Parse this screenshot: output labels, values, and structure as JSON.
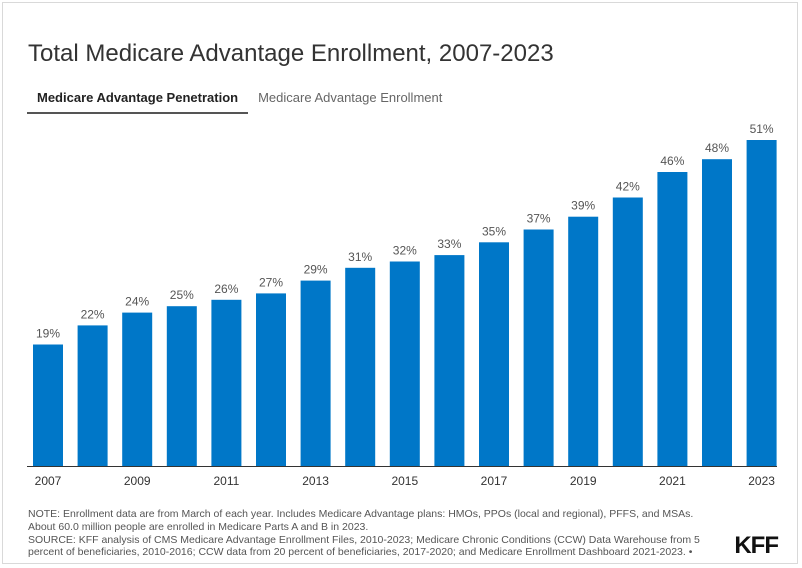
{
  "title": "Total Medicare Advantage Enrollment, 2007-2023",
  "tabs": [
    {
      "label": "Medicare Advantage Penetration",
      "active": true
    },
    {
      "label": "Medicare Advantage Enrollment",
      "active": false
    }
  ],
  "colors": {
    "bar": "#0077c8",
    "label": "#555555",
    "axis": "#333333"
  },
  "chart_data": {
    "type": "bar",
    "title": "Total Medicare Advantage Enrollment, 2007-2023",
    "xlabel": "",
    "ylabel": "",
    "ylim": [
      0,
      55
    ],
    "grid": false,
    "categories": [
      "2007",
      "2008",
      "2009",
      "2010",
      "2011",
      "2012",
      "2013",
      "2014",
      "2015",
      "2016",
      "2017",
      "2018",
      "2019",
      "2020",
      "2021",
      "2022",
      "2023"
    ],
    "tick_labels": [
      "2007",
      "",
      "2009",
      "",
      "2011",
      "",
      "2013",
      "",
      "2015",
      "",
      "2017",
      "",
      "2019",
      "",
      "2021",
      "",
      "2023"
    ],
    "values": [
      19,
      22,
      24,
      25,
      26,
      27,
      29,
      31,
      32,
      33,
      35,
      37,
      39,
      42,
      46,
      48,
      51
    ],
    "data_labels": [
      "19%",
      "22%",
      "24%",
      "25%",
      "26%",
      "27%",
      "29%",
      "31%",
      "32%",
      "33%",
      "35%",
      "37%",
      "39%",
      "42%",
      "46%",
      "48%",
      "51%"
    ]
  },
  "notes": {
    "line1": "NOTE: Enrollment data are from March of each year. Includes Medicare Advantage plans: HMOs, PPOs (local and regional), PFFS, and MSAs.",
    "line2": "About 60.0 million people are enrolled in Medicare Parts A and B in 2023.",
    "line3": "SOURCE: KFF analysis of CMS Medicare Advantage Enrollment Files, 2010-2023; Medicare Chronic Conditions (CCW) Data Warehouse from 5",
    "line4": "percent of beneficiaries, 2010-2016; CCW data from 20 percent of beneficiaries, 2017-2020; and Medicare Enrollment Dashboard 2021-2023. •"
  },
  "logo": "KFF"
}
